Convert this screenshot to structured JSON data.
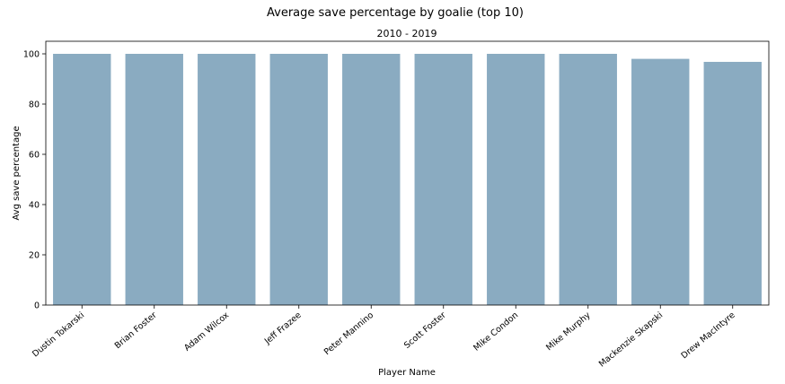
{
  "chart_data": {
    "type": "bar",
    "title": "Average save percentage by goalie (top 10)",
    "subtitle": "2010 - 2019",
    "xlabel": "Player Name",
    "ylabel": "Avg save percentage",
    "categories": [
      "Dustin Tokarski",
      "Brian Foster",
      "Adam Wilcox",
      "Jeff Frazee",
      "Peter Mannino",
      "Scott Foster",
      "Mike Condon",
      "Mike Murphy",
      "Mackenzie Skapski",
      "Drew MacIntyre"
    ],
    "values": [
      100,
      100,
      100,
      100,
      100,
      100,
      100,
      100,
      98,
      96.8
    ],
    "ylim": [
      0,
      105
    ],
    "yticks": [
      0,
      20,
      40,
      60,
      80,
      100
    ],
    "grid": false,
    "bar_color": "#8aabc1"
  }
}
